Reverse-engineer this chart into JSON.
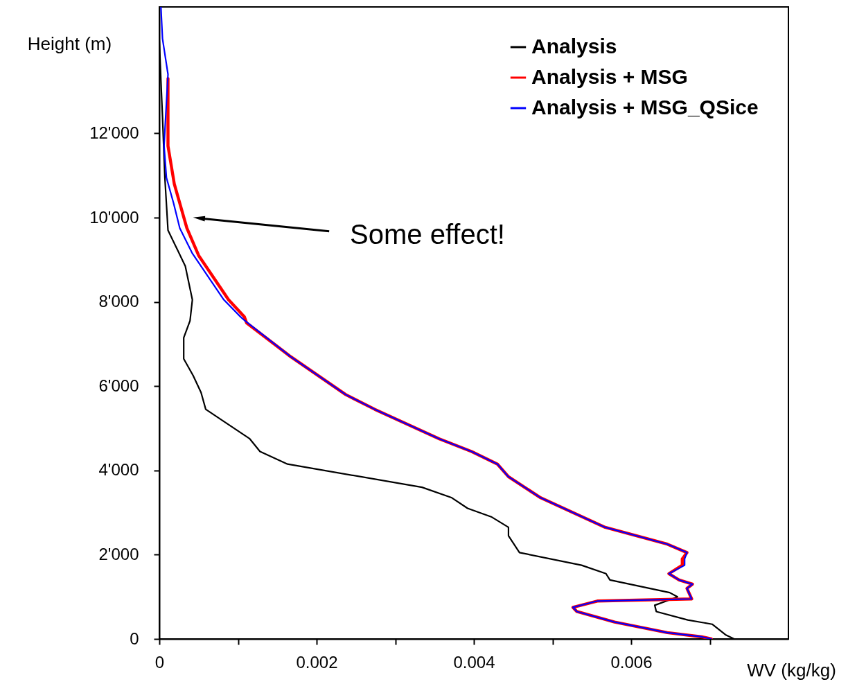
{
  "chart_data": {
    "type": "line",
    "xlabel": "WV (kg/kg)",
    "ylabel": "Height (m)",
    "legend": "top right",
    "marker": "none",
    "line_style": "solid",
    "xlim": [
      0,
      0.008
    ],
    "ylim": [
      0,
      15000
    ],
    "xticks": [
      0,
      {
        "value": 0.001,
        "label": null
      },
      0.002,
      {
        "value": 0.003,
        "label": null
      },
      0.004,
      {
        "value": 0.005,
        "label": null
      },
      0.006,
      {
        "value": 0.007,
        "label": null
      }
    ],
    "yticks": [
      0,
      {
        "value": 2000,
        "label": "2'000"
      },
      {
        "value": 4000,
        "label": "4'000"
      },
      {
        "value": 6000,
        "label": "6'000"
      },
      {
        "value": 8000,
        "label": "8'000"
      },
      {
        "value": 10000,
        "label": "10'000"
      },
      {
        "value": 12000,
        "label": "12'000"
      }
    ],
    "annotations": [
      "Some effect!"
    ],
    "series": [
      {
        "name": "Analysis",
        "color": "#000000",
        "x": [
          0,
          2e-05,
          4e-05,
          7e-05,
          0.00011,
          0.00033,
          0.00042,
          0.00039,
          0.00031,
          0.00031,
          0.00043,
          0.00053,
          0.00059,
          0.00083,
          0.00115,
          0.00128,
          0.00163,
          0.00334,
          0.00372,
          0.00392,
          0.00422,
          0.00444,
          0.00444,
          0.00458,
          0.00537,
          0.00568,
          0.00573,
          0.00649,
          0.00659,
          0.00652,
          0.0063,
          0.00632,
          0.00672,
          0.00703,
          0.0072,
          0.00731
        ],
        "values": [
          14200,
          13250,
          12400,
          10950,
          9700,
          8850,
          8050,
          7550,
          7150,
          6650,
          6250,
          5850,
          5450,
          5150,
          4750,
          4450,
          4150,
          3600,
          3350,
          3100,
          2900,
          2650,
          2450,
          2050,
          1750,
          1550,
          1400,
          1100,
          1000,
          950,
          800,
          650,
          450,
          350,
          100,
          0
        ]
      },
      {
        "name": "Analysis + MSG",
        "color": "#ff0000",
        "x": [
          0.00011,
          0.00011,
          0.00019,
          0.00035,
          0.0005,
          0.00088,
          0.00108,
          0.00111,
          0.00167,
          0.00237,
          0.00274,
          0.00356,
          0.00397,
          0.0043,
          0.00444,
          0.00485,
          0.00567,
          0.00646,
          0.00671,
          0.00665,
          0.00665,
          0.00648,
          0.00661,
          0.00678,
          0.00671,
          0.00677,
          0.00557,
          0.00526,
          0.00531,
          0.00579,
          0.00646,
          0.0069,
          0.00702
        ],
        "values": [
          13300,
          11700,
          10800,
          9750,
          9100,
          8050,
          7650,
          7500,
          6700,
          5800,
          5450,
          4750,
          4450,
          4150,
          3850,
          3350,
          2650,
          2250,
          2050,
          1900,
          1750,
          1550,
          1400,
          1300,
          1200,
          950,
          900,
          750,
          650,
          400,
          150,
          50,
          0
        ]
      },
      {
        "name": "Analysis + MSG_QSice",
        "color": "#0000ff",
        "x": [
          2e-05,
          4e-05,
          0.00011,
          6e-05,
          9e-05,
          0.00018,
          0.00026,
          0.00042,
          0.00082,
          0.00103,
          0.00109,
          0.00167,
          0.00237,
          0.00274,
          0.00356,
          0.00397,
          0.0043,
          0.00444,
          0.00485,
          0.00567,
          0.00646,
          0.00671,
          0.00668,
          0.00668,
          0.00648,
          0.00661,
          0.00678,
          0.00671,
          0.00677,
          0.00557,
          0.00526,
          0.00531,
          0.00579,
          0.00646,
          0.0069,
          0.00702
        ],
        "values": [
          15000,
          14250,
          13400,
          11700,
          10950,
          10350,
          9750,
          9150,
          8050,
          7650,
          7550,
          6700,
          5800,
          5450,
          4750,
          4450,
          4150,
          3850,
          3350,
          2650,
          2250,
          2050,
          1900,
          1750,
          1550,
          1400,
          1300,
          1200,
          950,
          900,
          750,
          650,
          400,
          150,
          50,
          0
        ]
      }
    ]
  }
}
